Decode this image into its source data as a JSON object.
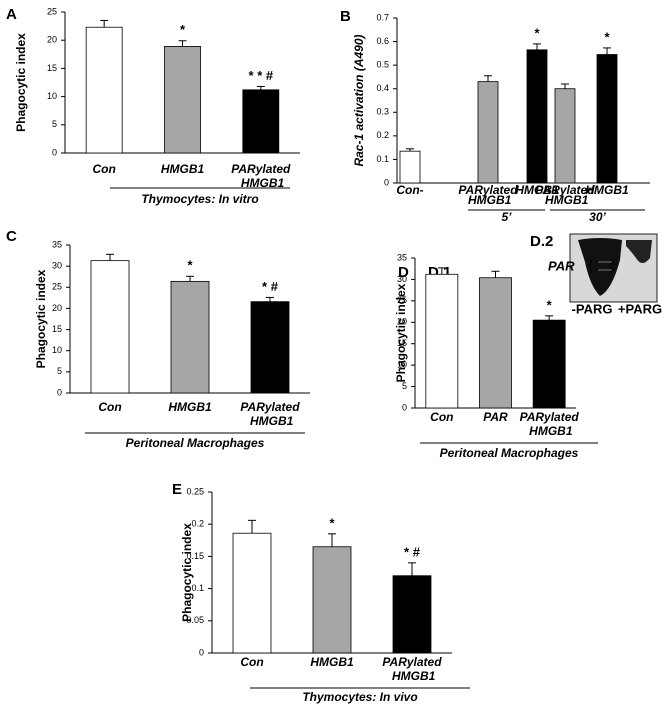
{
  "chart_data": [
    {
      "type": "bar",
      "panel": "A",
      "ylabel": "Phagocytic index",
      "xlabel": "Thymocytes: In vitro",
      "categories": [
        "Con",
        "HMGB1",
        "PARylated HMGB1"
      ],
      "values": [
        22.3,
        18.9,
        11.2
      ],
      "errors": [
        1.2,
        1.0,
        0.6
      ],
      "colors": [
        "#ffffff",
        "#a6a6a6",
        "#000000"
      ],
      "annotations": [
        null,
        "*",
        "* * #"
      ],
      "ylim": [
        0,
        25
      ],
      "yticks": [
        0,
        5,
        10,
        15,
        20,
        25
      ]
    },
    {
      "type": "bar",
      "panel": "B",
      "ylabel": "Rac-1 activation  (A490)",
      "categories": [
        "Con-",
        "PARylated HMGB1",
        "HMGB1",
        "PARylated HMGB1",
        "HMGB1"
      ],
      "values": [
        0.135,
        0.43,
        0.565,
        0.4,
        0.545
      ],
      "errors": [
        0.01,
        0.025,
        0.025,
        0.02,
        0.028
      ],
      "colors": [
        "#ffffff",
        "#a6a6a6",
        "#000000",
        "#a6a6a6",
        "#000000"
      ],
      "annotations": [
        null,
        null,
        "*",
        null,
        "*"
      ],
      "group_labels": [
        "5’",
        "30’"
      ],
      "ylim": [
        0,
        0.7
      ],
      "yticks": [
        0,
        0.1,
        0.2,
        0.3,
        0.4,
        0.5,
        0.6,
        0.7
      ]
    },
    {
      "type": "bar",
      "panel": "C",
      "ylabel": "Phagocytic index",
      "xlabel": "Peritoneal  Macrophages",
      "categories": [
        "Con",
        "HMGB1",
        "PARylated HMGB1"
      ],
      "values": [
        31.3,
        26.4,
        21.6
      ],
      "errors": [
        1.5,
        1.2,
        1.0
      ],
      "colors": [
        "#ffffff",
        "#a6a6a6",
        "#000000"
      ],
      "annotations": [
        null,
        "*",
        "* #"
      ],
      "ylim": [
        0,
        35
      ],
      "yticks": [
        0,
        5,
        10,
        15,
        20,
        25,
        30,
        35
      ]
    },
    {
      "type": "bar",
      "panel": "D",
      "subpanel": "D.1",
      "ylabel": "Phagocytic index",
      "xlabel": "Peritoneal  Macrophages",
      "categories": [
        "Con",
        "PAR",
        "PARylated HMGB1"
      ],
      "values": [
        31.2,
        30.4,
        20.5
      ],
      "errors": [
        1.5,
        1.5,
        1.0
      ],
      "colors": [
        "#ffffff",
        "#a6a6a6",
        "#000000"
      ],
      "annotations": [
        null,
        null,
        "*"
      ],
      "ylim": [
        0,
        35
      ],
      "yticks": [
        0,
        5,
        10,
        15,
        20,
        25,
        30,
        35
      ],
      "inset": {
        "label": "D.2",
        "band_label": "PAR",
        "lanes": [
          "-PARG",
          "+PARG"
        ]
      }
    },
    {
      "type": "bar",
      "panel": "E",
      "ylabel": "Phagocytic index",
      "xlabel": "Thymocytes: In vivo",
      "categories": [
        "Con",
        "HMGB1",
        "PARylated HMGB1"
      ],
      "values": [
        0.186,
        0.165,
        0.12
      ],
      "errors": [
        0.02,
        0.02,
        0.02
      ],
      "colors": [
        "#ffffff",
        "#a6a6a6",
        "#000000"
      ],
      "annotations": [
        null,
        "*",
        "* #"
      ],
      "ylim": [
        0,
        0.25
      ],
      "yticks": [
        0,
        0.05,
        0.1,
        0.15,
        0.2,
        0.25
      ]
    }
  ]
}
